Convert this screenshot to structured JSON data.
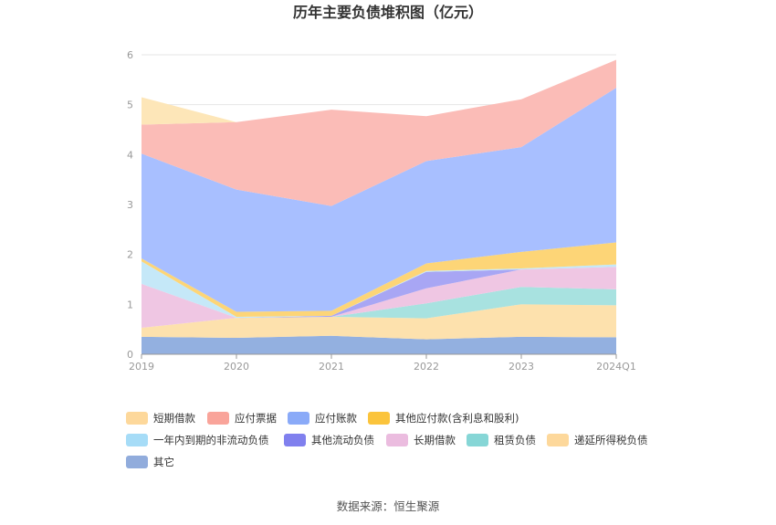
{
  "chart_data": {
    "type": "area",
    "stacked": true,
    "title": "历年主要负债堆积图（亿元）",
    "categories": [
      "2019",
      "2020",
      "2021",
      "2022",
      "2023",
      "2024Q1"
    ],
    "ylim": [
      0,
      6
    ],
    "yticks": [
      "0",
      "1",
      "2",
      "3",
      "4",
      "5",
      "6"
    ],
    "grid": true,
    "legend_position": "bottom",
    "series": [
      {
        "name": "其它",
        "color": "#93b0e0",
        "values": [
          0.35,
          0.33,
          0.37,
          0.3,
          0.35,
          0.34
        ]
      },
      {
        "name": "递延所得税负债",
        "color": "#fde1ad",
        "values": [
          0.18,
          0.4,
          0.38,
          0.42,
          0.65,
          0.64
        ]
      },
      {
        "name": "租赁负债",
        "color": "#a8e2e0",
        "values": [
          0,
          0,
          0,
          0.3,
          0.35,
          0.32
        ]
      },
      {
        "name": "长期借款",
        "color": "#efc6e3",
        "values": [
          0.88,
          0,
          0,
          0.3,
          0.35,
          0.45
        ]
      },
      {
        "name": "其他流动负债",
        "color": "#a8a6f4",
        "values": [
          0,
          0,
          0.02,
          0.33,
          0,
          0
        ]
      },
      {
        "name": "一年内到期的非流动负债",
        "color": "#c5e8f8",
        "values": [
          0.45,
          0.02,
          0,
          0.02,
          0.02,
          0.05
        ]
      },
      {
        "name": "其他应付款(含利息和股利)",
        "color": "#fdd577",
        "values": [
          0.06,
          0.1,
          0.1,
          0.15,
          0.33,
          0.44
        ]
      },
      {
        "name": "应付账款",
        "color": "#a8bfff",
        "values": [
          2.1,
          2.45,
          2.1,
          2.05,
          2.1,
          3.1
        ]
      },
      {
        "name": "应付票据",
        "color": "#fbbcb7",
        "values": [
          0.58,
          1.35,
          1.93,
          0.9,
          0.96,
          0.56
        ]
      },
      {
        "name": "短期借款",
        "color": "#fde6b8",
        "values": [
          0.55,
          0,
          0,
          0,
          0,
          0
        ]
      }
    ],
    "legend": [
      {
        "name": "短期借款",
        "color": "#fdd89b"
      },
      {
        "name": "应付票据",
        "color": "#f9a49a"
      },
      {
        "name": "应付账款",
        "color": "#8aaaf8"
      },
      {
        "name": "其他应付款(含利息和股利)",
        "color": "#fbc43c"
      },
      {
        "name": "一年内到期的非流动负债",
        "color": "#a6dcf7"
      },
      {
        "name": "其他流动负债",
        "color": "#8080ee"
      },
      {
        "name": "长期借款",
        "color": "#ebbcdf"
      },
      {
        "name": "租赁负债",
        "color": "#86d6d6"
      },
      {
        "name": "递延所得税负债",
        "color": "#fdd89b"
      },
      {
        "name": "其它",
        "color": "#91acdc"
      }
    ],
    "source": "数据来源：恒生聚源"
  }
}
